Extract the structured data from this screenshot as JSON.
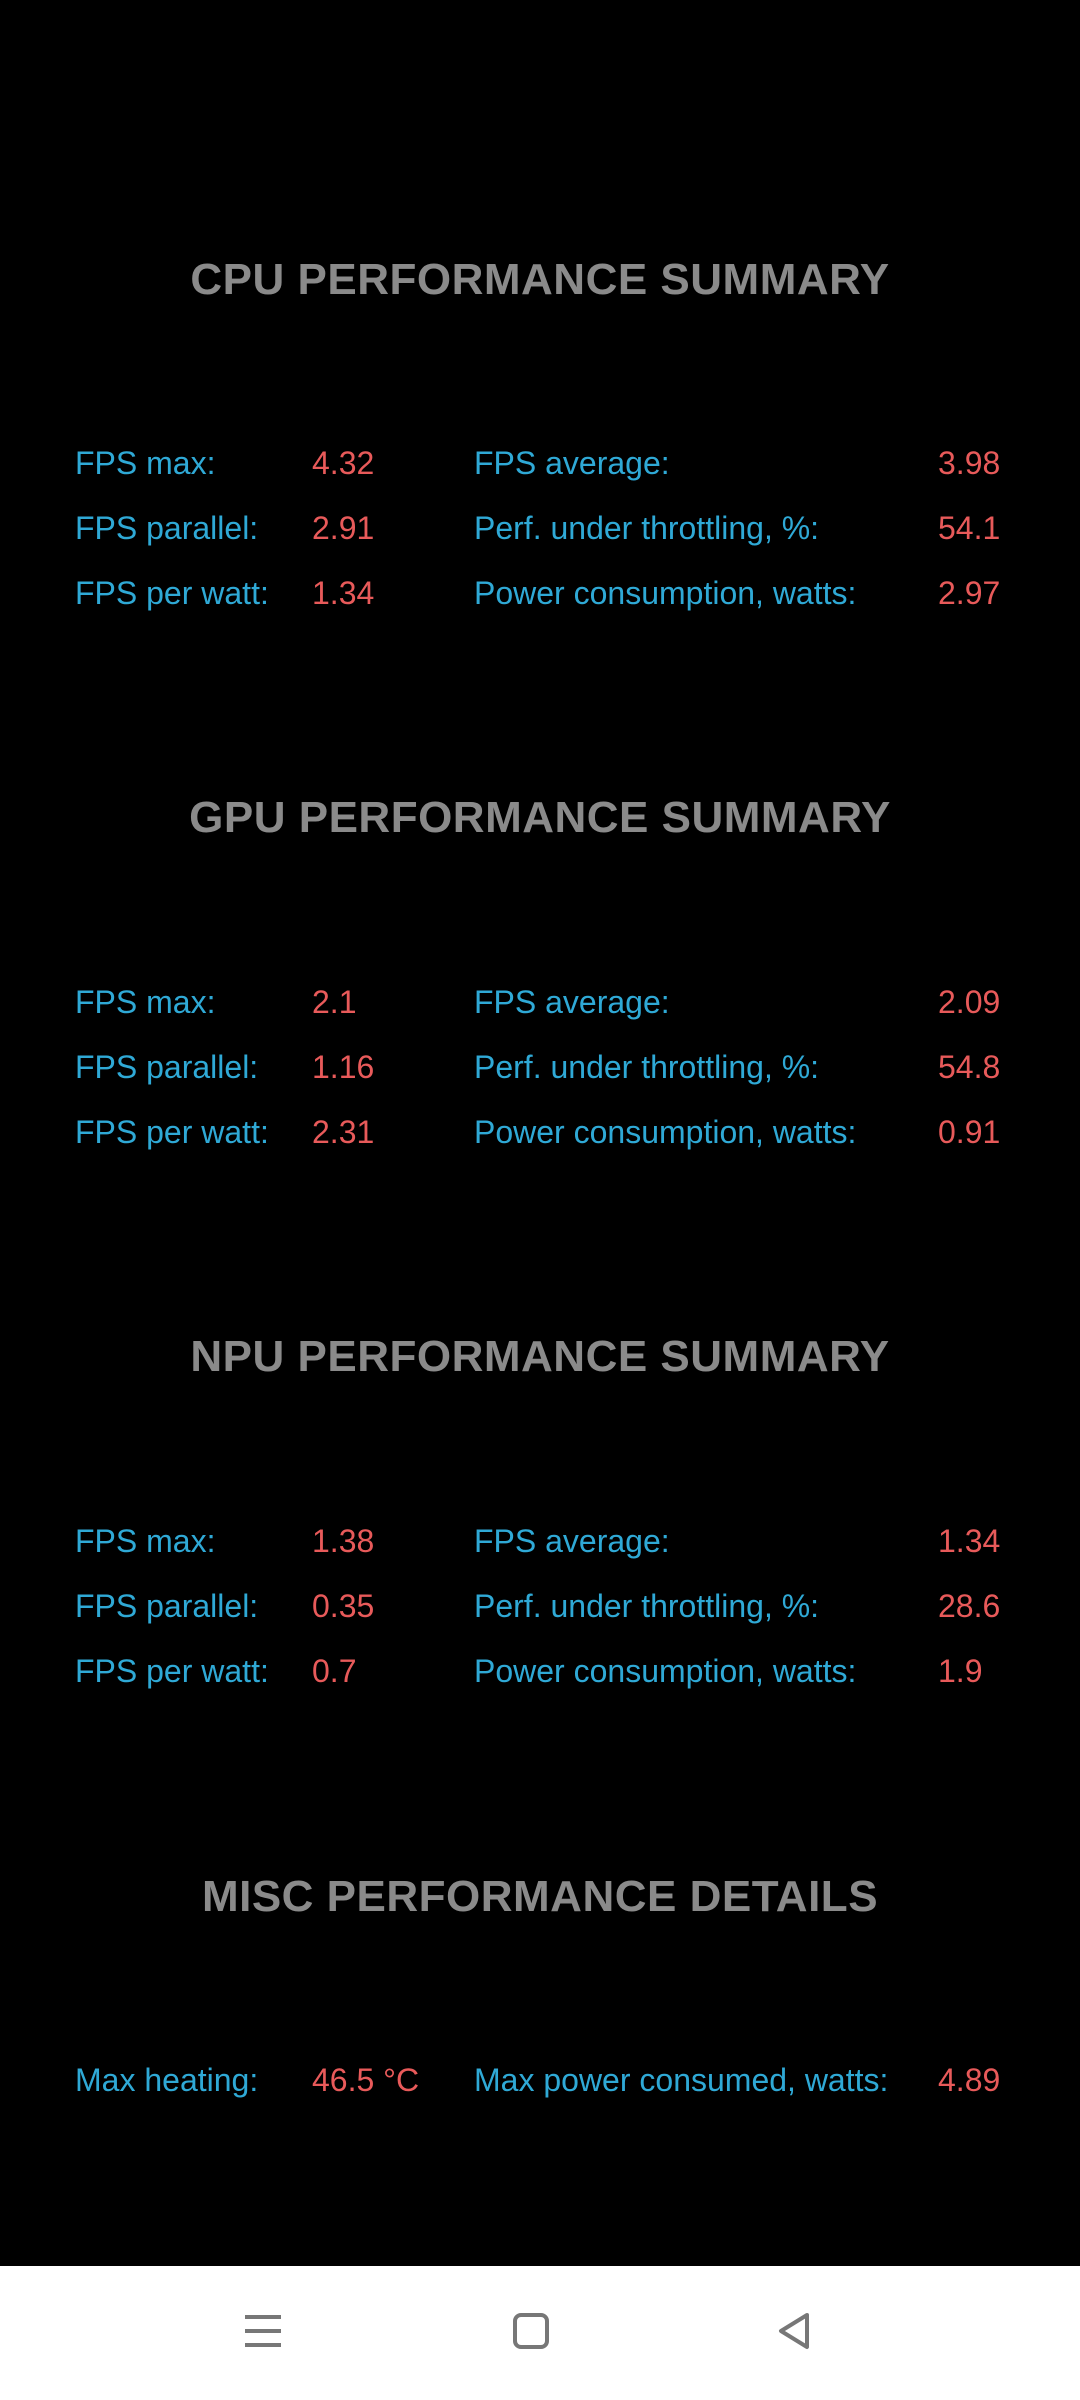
{
  "sections": [
    {
      "title": "CPU PERFORMANCE SUMMARY",
      "rows": [
        {
          "l1": "FPS max:",
          "v1": "4.32",
          "l2": "FPS average:",
          "v2": "3.98"
        },
        {
          "l1": "FPS parallel:",
          "v1": "2.91",
          "l2": "Perf. under throttling, %:",
          "v2": "54.1"
        },
        {
          "l1": "FPS per watt:",
          "v1": "1.34",
          "l2": "Power consumption, watts:",
          "v2": "2.97"
        }
      ]
    },
    {
      "title": "GPU PERFORMANCE SUMMARY",
      "rows": [
        {
          "l1": "FPS max:",
          "v1": "2.1",
          "l2": "FPS average:",
          "v2": "2.09"
        },
        {
          "l1": "FPS parallel:",
          "v1": "1.16",
          "l2": "Perf. under throttling, %:",
          "v2": "54.8"
        },
        {
          "l1": "FPS per watt:",
          "v1": "2.31",
          "l2": "Power consumption, watts:",
          "v2": "0.91"
        }
      ]
    },
    {
      "title": "NPU PERFORMANCE SUMMARY",
      "rows": [
        {
          "l1": "FPS max:",
          "v1": "1.38",
          "l2": "FPS average:",
          "v2": "1.34"
        },
        {
          "l1": "FPS parallel:",
          "v1": "0.35",
          "l2": "Perf. under throttling, %:",
          "v2": "28.6"
        },
        {
          "l1": "FPS per watt:",
          "v1": "0.7",
          "l2": "Power consumption, watts:",
          "v2": "1.9"
        }
      ]
    },
    {
      "title": "MISC PERFORMANCE DETAILS",
      "rows": [
        {
          "l1": "Max heating:",
          "v1": "46.5 °C",
          "l2": "Max power consumed, watts:",
          "v2": "4.89"
        }
      ]
    }
  ],
  "colors": {
    "background": "#000000",
    "title": "#8a8a8a",
    "label": "#2fa9d6",
    "value": "#e85a5a",
    "navbar": "#ffffff"
  },
  "navbar": {
    "icons": [
      "menu-icon",
      "home-square-icon",
      "back-triangle-icon"
    ]
  }
}
